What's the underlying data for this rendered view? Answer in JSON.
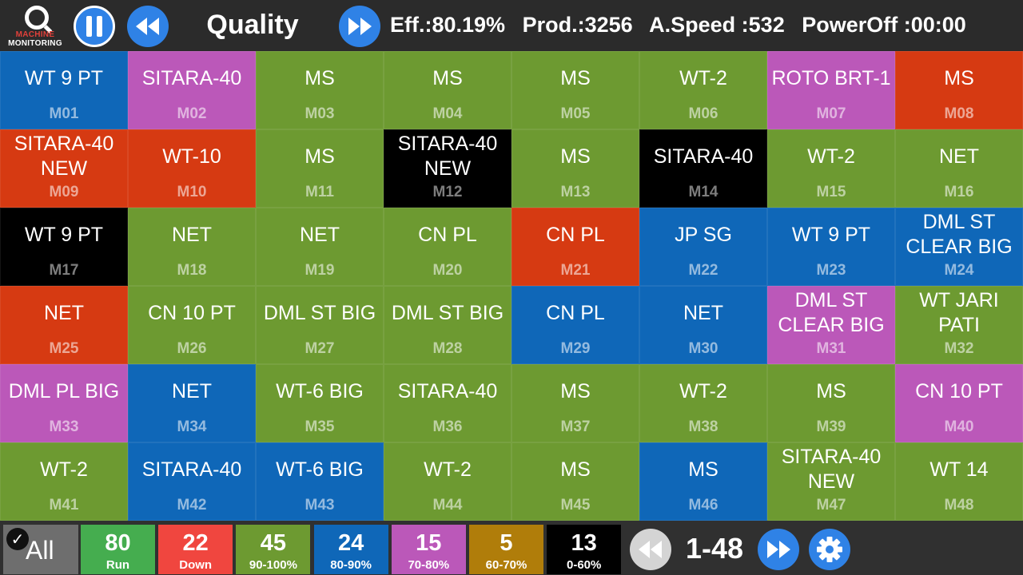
{
  "header": {
    "logo_line1": "MACHINE",
    "logo_line2": "MONITORING",
    "title": "Quality",
    "efficiency": "Eff.:80.19%",
    "production": "Prod.:3256",
    "avg_speed": "A.Speed :532",
    "power_off": "PowerOff :00:00"
  },
  "icons": {
    "pause": "pause-icon",
    "rewind": "rewind-icon",
    "fast_forward": "fast-forward-icon",
    "settings": "gear-icon",
    "check": "check-icon"
  },
  "colors": {
    "green": "#6d9a31",
    "blue": "#0f67b8",
    "magenta": "#bb58b9",
    "red": "#d63a12",
    "black": "#000000",
    "gold": "#b07d0a",
    "run": "#45ad4f",
    "down": "#f0463f",
    "button_blue": "#2f82e6"
  },
  "machines": [
    {
      "name": "WT 9 PT",
      "id": "M01",
      "status": "blue"
    },
    {
      "name": "SITARA-40",
      "id": "M02",
      "status": "magenta"
    },
    {
      "name": "MS",
      "id": "M03",
      "status": "green"
    },
    {
      "name": "MS",
      "id": "M04",
      "status": "green"
    },
    {
      "name": "MS",
      "id": "M05",
      "status": "green"
    },
    {
      "name": "WT-2",
      "id": "M06",
      "status": "green"
    },
    {
      "name": "ROTO BRT-1",
      "id": "M07",
      "status": "magenta"
    },
    {
      "name": "MS",
      "id": "M08",
      "status": "red"
    },
    {
      "name": "SITARA-40 NEW",
      "id": "M09",
      "status": "red"
    },
    {
      "name": "WT-10",
      "id": "M10",
      "status": "red"
    },
    {
      "name": "MS",
      "id": "M11",
      "status": "green"
    },
    {
      "name": "SITARA-40 NEW",
      "id": "M12",
      "status": "black"
    },
    {
      "name": "MS",
      "id": "M13",
      "status": "green"
    },
    {
      "name": "SITARA-40",
      "id": "M14",
      "status": "black"
    },
    {
      "name": "WT-2",
      "id": "M15",
      "status": "green"
    },
    {
      "name": "NET",
      "id": "M16",
      "status": "green"
    },
    {
      "name": "WT 9 PT",
      "id": "M17",
      "status": "black"
    },
    {
      "name": "NET",
      "id": "M18",
      "status": "green"
    },
    {
      "name": "NET",
      "id": "M19",
      "status": "green"
    },
    {
      "name": "CN PL",
      "id": "M20",
      "status": "green"
    },
    {
      "name": "CN PL",
      "id": "M21",
      "status": "red"
    },
    {
      "name": "JP SG",
      "id": "M22",
      "status": "blue"
    },
    {
      "name": "WT 9 PT",
      "id": "M23",
      "status": "blue"
    },
    {
      "name": "DML ST CLEAR BIG",
      "id": "M24",
      "status": "blue"
    },
    {
      "name": "NET",
      "id": "M25",
      "status": "red"
    },
    {
      "name": "CN 10 PT",
      "id": "M26",
      "status": "green"
    },
    {
      "name": "DML ST BIG",
      "id": "M27",
      "status": "green"
    },
    {
      "name": "DML ST BIG",
      "id": "M28",
      "status": "green"
    },
    {
      "name": "CN PL",
      "id": "M29",
      "status": "blue"
    },
    {
      "name": "NET",
      "id": "M30",
      "status": "blue"
    },
    {
      "name": "DML ST CLEAR BIG",
      "id": "M31",
      "status": "magenta"
    },
    {
      "name": "WT JARI PATI",
      "id": "M32",
      "status": "green"
    },
    {
      "name": "DML PL BIG",
      "id": "M33",
      "status": "magenta"
    },
    {
      "name": "NET",
      "id": "M34",
      "status": "blue"
    },
    {
      "name": "WT-6 BIG",
      "id": "M35",
      "status": "green"
    },
    {
      "name": "SITARA-40",
      "id": "M36",
      "status": "green"
    },
    {
      "name": "MS",
      "id": "M37",
      "status": "green"
    },
    {
      "name": "WT-2",
      "id": "M38",
      "status": "green"
    },
    {
      "name": "MS",
      "id": "M39",
      "status": "green"
    },
    {
      "name": "CN 10 PT",
      "id": "M40",
      "status": "magenta"
    },
    {
      "name": "WT-2",
      "id": "M41",
      "status": "green"
    },
    {
      "name": "SITARA-40",
      "id": "M42",
      "status": "blue"
    },
    {
      "name": "WT-6 BIG",
      "id": "M43",
      "status": "blue"
    },
    {
      "name": "WT-2",
      "id": "M44",
      "status": "green"
    },
    {
      "name": "MS",
      "id": "M45",
      "status": "green"
    },
    {
      "name": "MS",
      "id": "M46",
      "status": "blue"
    },
    {
      "name": "SITARA-40 NEW",
      "id": "M47",
      "status": "green"
    },
    {
      "name": "WT 14",
      "id": "M48",
      "status": "green"
    }
  ],
  "footer": {
    "all_label": "All",
    "filters": [
      {
        "count": "80",
        "label": "Run",
        "color": "run"
      },
      {
        "count": "22",
        "label": "Down",
        "color": "down"
      },
      {
        "count": "45",
        "label": "90-100%",
        "color": "green"
      },
      {
        "count": "24",
        "label": "80-90%",
        "color": "blue"
      },
      {
        "count": "15",
        "label": "70-80%",
        "color": "magenta"
      },
      {
        "count": "5",
        "label": "60-70%",
        "color": "gold"
      },
      {
        "count": "13",
        "label": "0-60%",
        "color": "black"
      }
    ],
    "page_range": "1-48"
  }
}
